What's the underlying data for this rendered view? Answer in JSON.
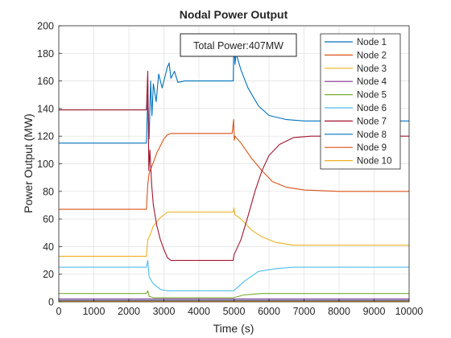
{
  "chart_data": {
    "type": "line",
    "title": "Nodal Power Output",
    "xlabel": "Time (s)",
    "ylabel": "Power Output (MW)",
    "xlim": [
      0,
      10000
    ],
    "ylim": [
      0,
      200
    ],
    "xticks": [
      0,
      1000,
      2000,
      3000,
      4000,
      5000,
      6000,
      7000,
      8000,
      9000,
      10000
    ],
    "yticks": [
      0,
      20,
      40,
      60,
      80,
      100,
      120,
      140,
      160,
      180,
      200
    ],
    "grid": true,
    "legend_position": "top-right",
    "annotation": "Total Power:407MW",
    "series": [
      {
        "name": "Node 1",
        "color": "#0072BD",
        "points": [
          [
            0,
            115
          ],
          [
            2500,
            115
          ],
          [
            2540,
            150
          ],
          [
            2580,
            118
          ],
          [
            2620,
            160
          ],
          [
            2660,
            135
          ],
          [
            2700,
            158
          ],
          [
            2780,
            145
          ],
          [
            2850,
            165
          ],
          [
            2950,
            155
          ],
          [
            3100,
            170
          ],
          [
            3150,
            173
          ],
          [
            3200,
            162
          ],
          [
            3300,
            167
          ],
          [
            3400,
            159
          ],
          [
            3600,
            160
          ],
          [
            4000,
            160
          ],
          [
            4980,
            160
          ],
          [
            5000,
            193
          ],
          [
            5030,
            172
          ],
          [
            5060,
            180
          ],
          [
            5200,
            168
          ],
          [
            5400,
            155
          ],
          [
            5700,
            142
          ],
          [
            6000,
            135
          ],
          [
            6500,
            132
          ],
          [
            7000,
            131
          ],
          [
            10000,
            131
          ]
        ]
      },
      {
        "name": "Node 2",
        "color": "#D95319",
        "points": [
          [
            0,
            67
          ],
          [
            2500,
            67
          ],
          [
            2540,
            85
          ],
          [
            2580,
            93
          ],
          [
            2620,
            96
          ],
          [
            2700,
            101
          ],
          [
            2800,
            108
          ],
          [
            2900,
            113
          ],
          [
            3000,
            118
          ],
          [
            3100,
            121
          ],
          [
            3200,
            122
          ],
          [
            3500,
            122
          ],
          [
            4000,
            122
          ],
          [
            4950,
            122
          ],
          [
            4990,
            132
          ],
          [
            5010,
            117
          ],
          [
            5030,
            120
          ],
          [
            5200,
            115
          ],
          [
            5500,
            104
          ],
          [
            5800,
            95
          ],
          [
            6100,
            87
          ],
          [
            6500,
            83
          ],
          [
            7000,
            81
          ],
          [
            8000,
            80
          ],
          [
            10000,
            80
          ]
        ]
      },
      {
        "name": "Node 3",
        "color": "#EDB120",
        "points": [
          [
            0,
            33
          ],
          [
            2500,
            33
          ],
          [
            2540,
            45
          ],
          [
            2600,
            48
          ],
          [
            2700,
            55
          ],
          [
            2800,
            58
          ],
          [
            2900,
            61
          ],
          [
            3000,
            63
          ],
          [
            3100,
            65
          ],
          [
            3300,
            65
          ],
          [
            4000,
            65
          ],
          [
            4980,
            65
          ],
          [
            5000,
            68
          ],
          [
            5030,
            63
          ],
          [
            5200,
            60
          ],
          [
            5500,
            52
          ],
          [
            5800,
            47
          ],
          [
            6200,
            43
          ],
          [
            6700,
            41
          ],
          [
            10000,
            41
          ]
        ]
      },
      {
        "name": "Node 4",
        "color": "#7E2F8E",
        "points": [
          [
            0,
            2
          ],
          [
            10000,
            2
          ]
        ]
      },
      {
        "name": "Node 5",
        "color": "#77AC30",
        "points": [
          [
            0,
            6
          ],
          [
            2500,
            6
          ],
          [
            2540,
            8
          ],
          [
            2580,
            4
          ],
          [
            2700,
            3
          ],
          [
            4990,
            3
          ],
          [
            5300,
            5
          ],
          [
            5800,
            6
          ],
          [
            10000,
            6
          ]
        ]
      },
      {
        "name": "Node 6",
        "color": "#4DBEEE",
        "points": [
          [
            0,
            25
          ],
          [
            2500,
            25
          ],
          [
            2540,
            30
          ],
          [
            2580,
            18
          ],
          [
            2700,
            13
          ],
          [
            2900,
            9
          ],
          [
            3100,
            8
          ],
          [
            4000,
            8
          ],
          [
            4990,
            8
          ],
          [
            5300,
            15
          ],
          [
            5700,
            22
          ],
          [
            6200,
            24
          ],
          [
            6700,
            25
          ],
          [
            10000,
            25
          ]
        ]
      },
      {
        "name": "Node 7",
        "color": "#A2142F",
        "points": [
          [
            0,
            139
          ],
          [
            2500,
            139
          ],
          [
            2540,
            167
          ],
          [
            2570,
            95
          ],
          [
            2600,
            110
          ],
          [
            2650,
            85
          ],
          [
            2700,
            70
          ],
          [
            2800,
            55
          ],
          [
            2900,
            45
          ],
          [
            3000,
            38
          ],
          [
            3100,
            32
          ],
          [
            3200,
            30
          ],
          [
            4000,
            30
          ],
          [
            4980,
            30
          ],
          [
            5000,
            34
          ],
          [
            5200,
            45
          ],
          [
            5400,
            62
          ],
          [
            5600,
            80
          ],
          [
            5800,
            95
          ],
          [
            6000,
            106
          ],
          [
            6300,
            114
          ],
          [
            6700,
            119
          ],
          [
            7200,
            120
          ],
          [
            10000,
            120
          ]
        ]
      },
      {
        "name": "Node 8",
        "color": "#0072BD",
        "points": [
          [
            0,
            1
          ],
          [
            10000,
            1
          ]
        ]
      },
      {
        "name": "Node 9",
        "color": "#D95319",
        "points": [
          [
            0,
            0.5
          ],
          [
            10000,
            0.5
          ]
        ]
      },
      {
        "name": "Node 10",
        "color": "#EDB120",
        "points": [
          [
            0,
            0.2
          ],
          [
            10000,
            0.2
          ]
        ]
      }
    ]
  }
}
